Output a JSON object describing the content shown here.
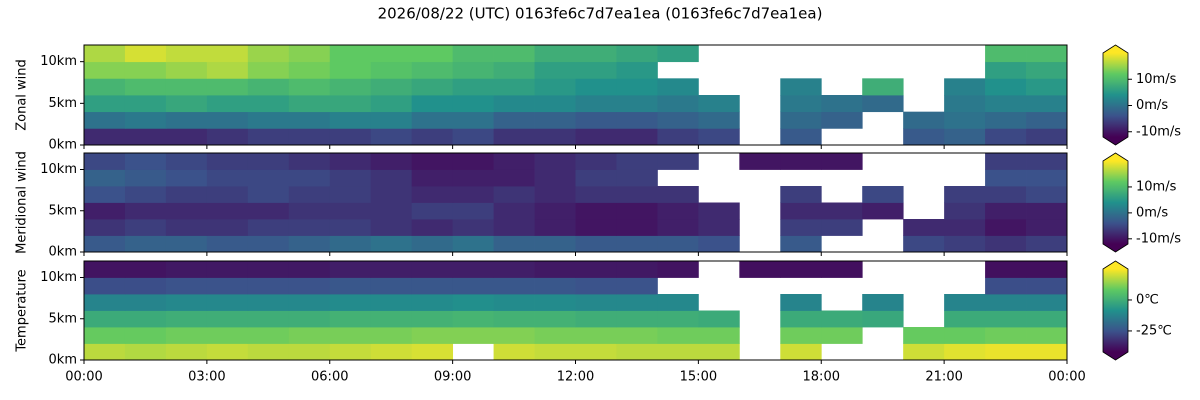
{
  "title": "2026/08/22 (UTC) 0163fe6c7d7ea1ea (0163fe6c7d7ea1ea)",
  "chart_data": [
    {
      "type": "heatmap",
      "ylabel": "Zonal wind",
      "colormap": "viridis",
      "xbins": [
        0,
        1,
        2,
        3,
        4,
        5,
        6,
        7,
        8,
        9,
        10,
        11,
        12,
        13,
        14,
        15,
        16,
        17,
        18,
        19,
        20,
        21,
        22,
        23,
        24
      ],
      "ybins": [
        0,
        2,
        4,
        6,
        8,
        10,
        12
      ],
      "values": [
        [
          -8,
          -8,
          -8,
          -7,
          -6,
          -6,
          -6,
          -5,
          -6,
          -5,
          -7,
          -7,
          -8,
          -8,
          -6,
          -5,
          null,
          -3,
          null,
          null,
          -3,
          -2,
          -5,
          -6
        ],
        [
          0,
          1,
          0,
          0,
          1,
          1,
          2,
          2,
          0,
          0,
          -2,
          -2,
          -3,
          -3,
          -2,
          -1,
          null,
          -1,
          -2,
          null,
          -1,
          0,
          -1,
          -2
        ],
        [
          6,
          6,
          7,
          6,
          6,
          7,
          7,
          6,
          4,
          4,
          3,
          3,
          2,
          2,
          1,
          2,
          null,
          1,
          0,
          -1,
          null,
          1,
          2,
          2
        ],
        [
          9,
          10,
          10,
          10,
          9,
          10,
          9,
          8,
          7,
          6,
          6,
          5,
          4,
          4,
          3,
          null,
          null,
          2,
          null,
          8,
          null,
          2,
          4,
          5
        ],
        [
          14,
          14,
          15,
          16,
          14,
          13,
          12,
          11,
          10,
          9,
          8,
          6,
          6,
          5,
          null,
          null,
          null,
          null,
          null,
          null,
          null,
          null,
          6,
          7
        ],
        [
          16,
          18,
          17,
          17,
          15,
          14,
          12,
          12,
          12,
          10,
          10,
          8,
          8,
          7,
          6,
          null,
          null,
          null,
          null,
          null,
          null,
          null,
          10,
          10
        ]
      ],
      "xlim": [
        0,
        24
      ],
      "ylim": [
        0,
        12
      ],
      "yticks": [
        {
          "value": 0,
          "label": "0km"
        },
        {
          "value": 5,
          "label": "5km"
        },
        {
          "value": 10,
          "label": "10km"
        }
      ],
      "zlim": [
        -12,
        20
      ],
      "zticks": [
        {
          "value": -10,
          "label": "-10m/s"
        },
        {
          "value": 0,
          "label": "0m/s"
        },
        {
          "value": 10,
          "label": "10m/s"
        }
      ]
    },
    {
      "type": "heatmap",
      "ylabel": "Meridional wind",
      "colormap": "viridis",
      "xbins": [
        0,
        1,
        2,
        3,
        4,
        5,
        6,
        7,
        8,
        9,
        10,
        11,
        12,
        13,
        14,
        15,
        16,
        17,
        18,
        19,
        20,
        21,
        22,
        23,
        24
      ],
      "ybins": [
        0,
        2,
        4,
        6,
        8,
        10,
        12
      ],
      "values": [
        [
          -3,
          -2,
          -2,
          -3,
          -3,
          -2,
          -1,
          0,
          -1,
          0,
          -2,
          -2,
          -3,
          -3,
          -3,
          -4,
          null,
          -3,
          null,
          null,
          -5,
          -6,
          -7,
          -6
        ],
        [
          -7,
          -6,
          -7,
          -7,
          -6,
          -6,
          -6,
          -7,
          -8,
          -7,
          -8,
          -9,
          -10,
          -10,
          -9,
          -8,
          null,
          -6,
          -6,
          null,
          -8,
          -8,
          -10,
          -9
        ],
        [
          -9,
          -8,
          -8,
          -8,
          -8,
          -7,
          -7,
          -7,
          -6,
          -6,
          -8,
          -9,
          -10,
          -10,
          -9,
          -8,
          null,
          -8,
          -8,
          -9,
          null,
          -7,
          -9,
          -9
        ],
        [
          -4,
          -5,
          -6,
          -6,
          -5,
          -6,
          -6,
          -7,
          -8,
          -8,
          -7,
          -8,
          -7,
          -7,
          -7,
          null,
          null,
          -6,
          null,
          -5,
          null,
          -6,
          -6,
          -5
        ],
        [
          -2,
          -3,
          -4,
          -5,
          -5,
          -5,
          -6,
          -7,
          -9,
          -9,
          -9,
          -8,
          -6,
          -6,
          null,
          null,
          null,
          null,
          null,
          null,
          null,
          null,
          -4,
          -4
        ],
        [
          -5,
          -4,
          -5,
          -6,
          -6,
          -7,
          -8,
          -9,
          -10,
          -10,
          -9,
          -8,
          -7,
          -6,
          -6,
          null,
          -10,
          -10,
          -10,
          null,
          null,
          null,
          -6,
          -6
        ]
      ],
      "xlim": [
        0,
        24
      ],
      "ylim": [
        0,
        12
      ],
      "yticks": [
        {
          "value": 0,
          "label": "0km"
        },
        {
          "value": 5,
          "label": "5km"
        },
        {
          "value": 10,
          "label": "10km"
        }
      ],
      "zlim": [
        -12,
        20
      ],
      "zticks": [
        {
          "value": -10,
          "label": "-10m/s"
        },
        {
          "value": 0,
          "label": "0m/s"
        },
        {
          "value": 10,
          "label": "10m/s"
        }
      ]
    },
    {
      "type": "heatmap",
      "ylabel": "Temperature",
      "colormap": "viridis",
      "xbins": [
        0,
        1,
        2,
        3,
        4,
        5,
        6,
        7,
        8,
        9,
        10,
        11,
        12,
        13,
        14,
        15,
        16,
        17,
        18,
        19,
        20,
        21,
        22,
        23,
        24
      ],
      "ybins": [
        0,
        2,
        4,
        6,
        8,
        10,
        12
      ],
      "values": [
        [
          18,
          17,
          18,
          19,
          18,
          18,
          19,
          20,
          21,
          null,
          20,
          19,
          19,
          18,
          18,
          18,
          null,
          20,
          null,
          null,
          20,
          22,
          23,
          23
        ],
        [
          9,
          9,
          10,
          10,
          10,
          11,
          11,
          11,
          12,
          12,
          12,
          11,
          11,
          11,
          10,
          10,
          null,
          10,
          10,
          null,
          9,
          9,
          10,
          10
        ],
        [
          -1,
          -1,
          0,
          0,
          0,
          0,
          1,
          1,
          1,
          2,
          1,
          1,
          0,
          0,
          0,
          -1,
          null,
          -1,
          -1,
          -2,
          null,
          -1,
          -1,
          -1
        ],
        [
          -12,
          -12,
          -11,
          -11,
          -11,
          -11,
          -10,
          -10,
          -10,
          -9,
          -10,
          -10,
          -11,
          -11,
          -11,
          null,
          null,
          -12,
          null,
          -12,
          null,
          -12,
          -12,
          -12
        ],
        [
          -26,
          -26,
          -25,
          -25,
          -25,
          -25,
          -24,
          -24,
          -24,
          -24,
          -24,
          -24,
          -25,
          -25,
          null,
          null,
          null,
          null,
          null,
          null,
          null,
          null,
          -26,
          -26
        ],
        [
          -38,
          -38,
          -37,
          -37,
          -37,
          -37,
          -36,
          -36,
          -36,
          -36,
          -36,
          -37,
          -37,
          -37,
          -38,
          null,
          -39,
          -39,
          -39,
          null,
          null,
          null,
          -39,
          -39
        ]
      ],
      "xlim": [
        0,
        24
      ],
      "ylim": [
        0,
        12
      ],
      "xticks": [
        {
          "value": 0,
          "label": "00:00"
        },
        {
          "value": 3,
          "label": "03:00"
        },
        {
          "value": 6,
          "label": "06:00"
        },
        {
          "value": 9,
          "label": "09:00"
        },
        {
          "value": 12,
          "label": "12:00"
        },
        {
          "value": 15,
          "label": "15:00"
        },
        {
          "value": 18,
          "label": "18:00"
        },
        {
          "value": 21,
          "label": "21:00"
        },
        {
          "value": 24,
          "label": "00:00"
        }
      ],
      "yticks": [
        {
          "value": 0,
          "label": "0km"
        },
        {
          "value": 5,
          "label": "5km"
        },
        {
          "value": 10,
          "label": "10km"
        }
      ],
      "zlim": [
        -42,
        25
      ],
      "zticks": [
        {
          "value": -25,
          "label": "-25℃"
        },
        {
          "value": 0,
          "label": "0℃"
        }
      ]
    }
  ]
}
